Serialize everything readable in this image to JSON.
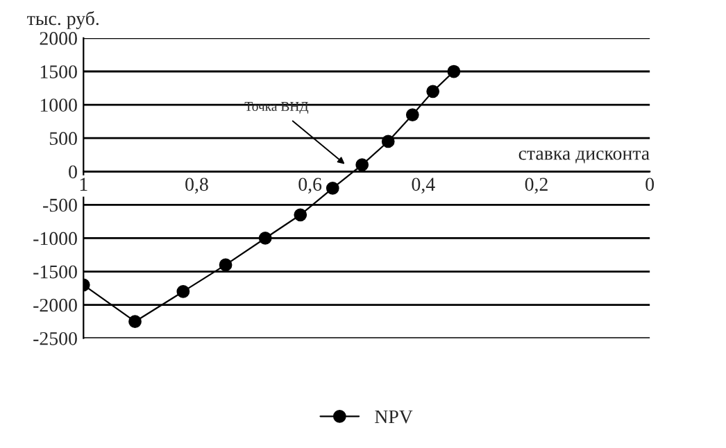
{
  "chart_data": {
    "type": "line",
    "xlabel": "ставка дисконта",
    "ylabel": "тыс. руб.",
    "x": [
      1.0,
      0.909,
      0.824,
      0.749,
      0.679,
      0.617,
      0.56,
      0.508,
      0.462,
      0.419,
      0.383,
      0.346
    ],
    "series": [
      {
        "name": "NPV",
        "color": "#000000",
        "values": [
          -1700,
          -2250,
          -1800,
          -1400,
          -1000,
          -650,
          -250,
          100,
          450,
          850,
          1200,
          1500
        ]
      }
    ],
    "xlim": [
      1,
      0
    ],
    "xticks": [
      {
        "value": 1,
        "label": "1"
      },
      {
        "value": 0.8,
        "label": "0,8"
      },
      {
        "value": 0.6,
        "label": "0,6"
      },
      {
        "value": 0.4,
        "label": "0,4"
      },
      {
        "value": 0.2,
        "label": "0,2"
      },
      {
        "value": 0,
        "label": "0"
      }
    ],
    "ylim": [
      -2500,
      2000
    ],
    "yticks": [
      -2500,
      -2000,
      -1500,
      -1000,
      -500,
      0,
      500,
      1000,
      1500,
      2000
    ],
    "annotations": [
      "Точка ВНД"
    ],
    "grid": "y",
    "legend": "bottom",
    "marker": "circle",
    "line_style": "solid"
  }
}
